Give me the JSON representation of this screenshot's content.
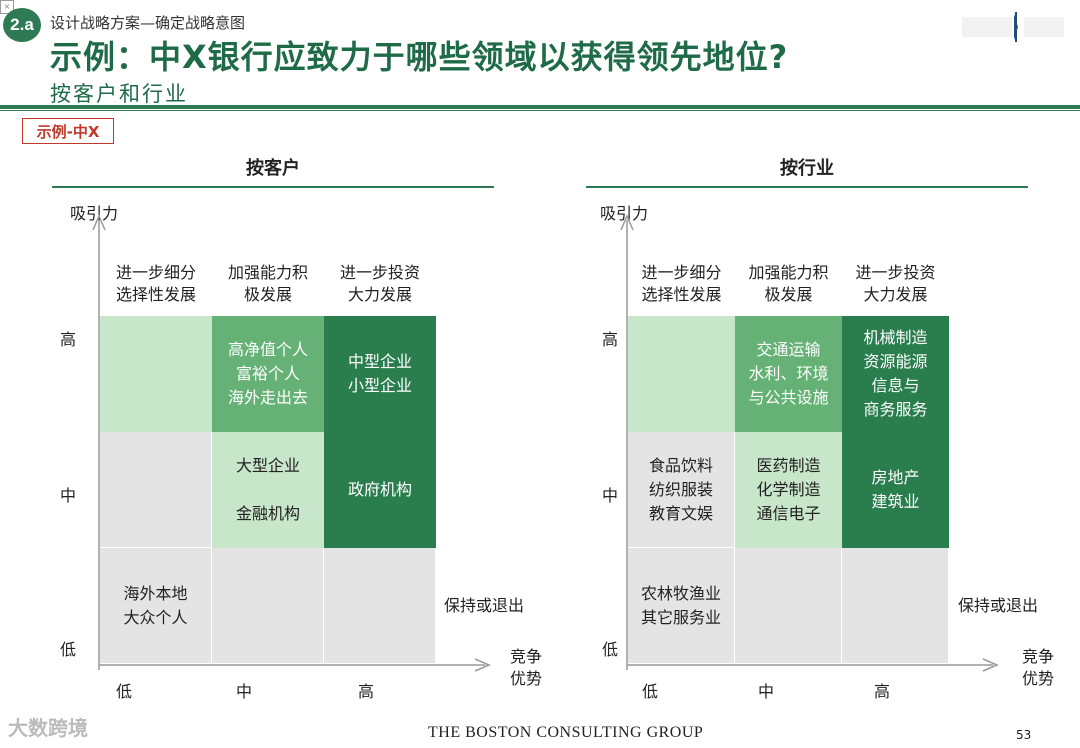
{
  "header": {
    "badge": "2.a",
    "breadcrumb": "设计战略方案—确定战略意图",
    "title": "示例：中X银行应致力于哪些领域以获得领先地位?",
    "subtitle": "按客户和行业",
    "example_tag": "示例-中X"
  },
  "panels": [
    {
      "title": "按客户",
      "y_axis": "吸引力",
      "x_axis": "竞争\n优势",
      "col_heads": [
        "进一步细分\n选择性发展",
        "加强能力积\n极发展",
        "进一步投资\n大力发展"
      ],
      "row_labels": [
        "高",
        "中",
        "低"
      ],
      "x_ticks": [
        "低",
        "中",
        "高"
      ],
      "exit": "保持或退出",
      "cells": {
        "r0c0": "",
        "r0c1": "高净值个人\n富裕个人\n海外走出去",
        "r0c2": "中型企业\n小型企业",
        "r1c0": "",
        "r1c1": "大型企业\n\n金融机构",
        "r1c2": "政府机构",
        "r2c0": "海外本地\n大众个人",
        "r2c1": "",
        "r2c2": ""
      }
    },
    {
      "title": "按行业",
      "y_axis": "吸引力",
      "x_axis": "竞争\n优势",
      "col_heads": [
        "进一步细分\n选择性发展",
        "加强能力积\n极发展",
        "进一步投资\n大力发展"
      ],
      "row_labels": [
        "高",
        "中",
        "低"
      ],
      "x_ticks": [
        "低",
        "中",
        "高"
      ],
      "exit": "保持或退出",
      "cells": {
        "r0c0": "",
        "r0c1": "交通运输\n水利、环境\n与公共设施",
        "r0c2": "机械制造\n资源能源\n信息与\n商务服务",
        "r1c0": "食品饮料\n纺织服装\n教育文娱",
        "r1c1": "医药制造\n化学制造\n通信电子",
        "r1c2": "房地产\n建筑业",
        "r2c0": "农林牧渔业\n其它服务业",
        "r2c1": "",
        "r2c2": ""
      }
    }
  ],
  "footer": {
    "brand": "THE BOSTON CONSULTING GROUP",
    "page": "53",
    "watermark": "大数跨境"
  },
  "colors": {
    "accent": "#2d7a55",
    "light": "#c8e6c9",
    "mid": "#66b276",
    "dark": "#2a7e4e",
    "grey": "#e4e4e4"
  },
  "icons": [
    "logo-mark-icon",
    "arrow-up-icon",
    "arrow-right-icon"
  ]
}
